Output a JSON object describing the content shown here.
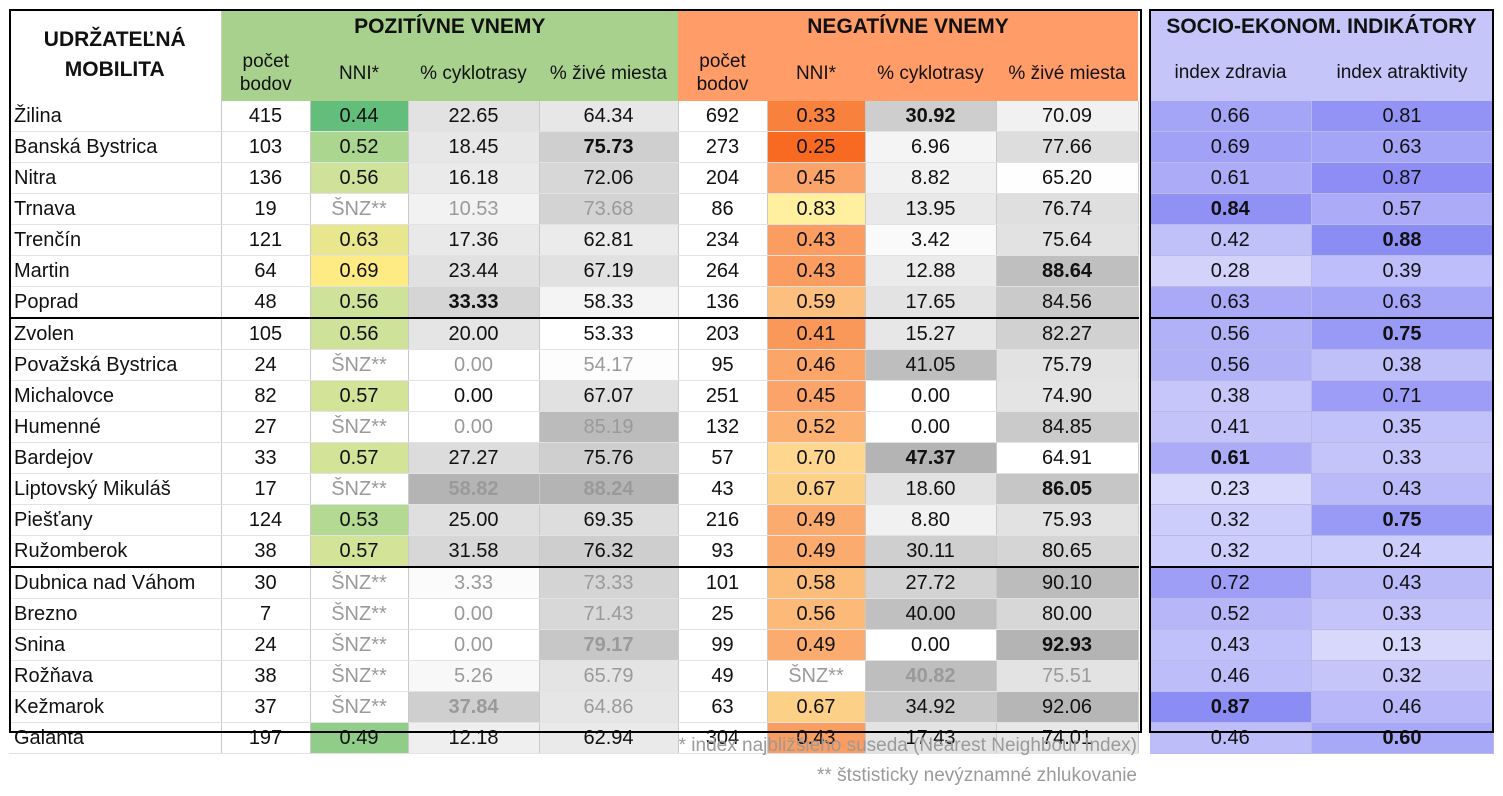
{
  "headers": {
    "mobility": "UDRŽATEĽNÁ\nMOBILITA",
    "positive": "POZITÍVNE VNEMY",
    "negative": "NEGATÍVNE VNEMY",
    "socio": "SOCIO-EKONOM. INDIKÁTORY",
    "col_points": "počet\nbodov",
    "col_nni": "NNI*",
    "col_cycle": "% cyklotrasy",
    "col_live": "% živé miesta",
    "col_health": "index zdravia",
    "col_attract": "index atraktivity"
  },
  "colors": {
    "positive_header": "#a9d18e",
    "negative_header": "#ff9c68",
    "socio_header": "#c5c5fa",
    "frame": "#000000"
  },
  "rows": [
    {
      "city": "Žilina",
      "pp": "415",
      "pn": "0.44",
      "pc": "22.65",
      "pl": "64.34",
      "np": "692",
      "nn": "0.33",
      "nc": "30.92",
      "nl": "70.09",
      "h": "0.66",
      "a": "0.81"
    },
    {
      "city": "Banská Bystrica",
      "pp": "103",
      "pn": "0.52",
      "pc": "18.45",
      "pl": "75.73",
      "np": "273",
      "nn": "0.25",
      "nc": "6.96",
      "nl": "77.66",
      "h": "0.69",
      "a": "0.63"
    },
    {
      "city": "Nitra",
      "pp": "136",
      "pn": "0.56",
      "pc": "16.18",
      "pl": "72.06",
      "np": "204",
      "nn": "0.45",
      "nc": "8.82",
      "nl": "65.20",
      "h": "0.61",
      "a": "0.87"
    },
    {
      "city": "Trnava",
      "pp": "19",
      "pn": "ŠNZ**",
      "pc": "10.53",
      "pl": "73.68",
      "np": "86",
      "nn": "0.83",
      "nc": "13.95",
      "nl": "76.74",
      "h": "0.84",
      "a": "0.57"
    },
    {
      "city": "Trenčín",
      "pp": "121",
      "pn": "0.63",
      "pc": "17.36",
      "pl": "62.81",
      "np": "234",
      "nn": "0.43",
      "nc": "3.42",
      "nl": "75.64",
      "h": "0.42",
      "a": "0.88"
    },
    {
      "city": "Martin",
      "pp": "64",
      "pn": "0.69",
      "pc": "23.44",
      "pl": "67.19",
      "np": "264",
      "nn": "0.43",
      "nc": "12.88",
      "nl": "88.64",
      "h": "0.28",
      "a": "0.39"
    },
    {
      "city": "Poprad",
      "pp": "48",
      "pn": "0.56",
      "pc": "33.33",
      "pl": "58.33",
      "np": "136",
      "nn": "0.59",
      "nc": "17.65",
      "nl": "84.56",
      "h": "0.63",
      "a": "0.63"
    },
    {
      "city": "Zvolen",
      "pp": "105",
      "pn": "0.56",
      "pc": "20.00",
      "pl": "53.33",
      "np": "203",
      "nn": "0.41",
      "nc": "15.27",
      "nl": "82.27",
      "h": "0.56",
      "a": "0.75"
    },
    {
      "city": "Považská Bystrica",
      "pp": "24",
      "pn": "ŠNZ**",
      "pc": "0.00",
      "pl": "54.17",
      "np": "95",
      "nn": "0.46",
      "nc": "41.05",
      "nl": "75.79",
      "h": "0.56",
      "a": "0.38"
    },
    {
      "city": "Michalovce",
      "pp": "82",
      "pn": "0.57",
      "pc": "0.00",
      "pl": "67.07",
      "np": "251",
      "nn": "0.45",
      "nc": "0.00",
      "nl": "74.90",
      "h": "0.38",
      "a": "0.71"
    },
    {
      "city": "Humenné",
      "pp": "27",
      "pn": "ŠNZ**",
      "pc": "0.00",
      "pl": "85.19",
      "np": "132",
      "nn": "0.52",
      "nc": "0.00",
      "nl": "84.85",
      "h": "0.41",
      "a": "0.35"
    },
    {
      "city": "Bardejov",
      "pp": "33",
      "pn": "0.57",
      "pc": "27.27",
      "pl": "75.76",
      "np": "57",
      "nn": "0.70",
      "nc": "47.37",
      "nl": "64.91",
      "h": "0.61",
      "a": "0.33"
    },
    {
      "city": "Liptovský Mikuláš",
      "pp": "17",
      "pn": "ŠNZ**",
      "pc": "58.82",
      "pl": "88.24",
      "np": "43",
      "nn": "0.67",
      "nc": "18.60",
      "nl": "86.05",
      "h": "0.23",
      "a": "0.43"
    },
    {
      "city": "Piešťany",
      "pp": "124",
      "pn": "0.53",
      "pc": "25.00",
      "pl": "69.35",
      "np": "216",
      "nn": "0.49",
      "nc": "8.80",
      "nl": "75.93",
      "h": "0.32",
      "a": "0.75"
    },
    {
      "city": "Ružomberok",
      "pp": "38",
      "pn": "0.57",
      "pc": "31.58",
      "pl": "76.32",
      "np": "93",
      "nn": "0.49",
      "nc": "30.11",
      "nl": "80.65",
      "h": "0.32",
      "a": "0.24"
    },
    {
      "city": "Dubnica nad Váhom",
      "pp": "30",
      "pn": "ŠNZ**",
      "pc": "3.33",
      "pl": "73.33",
      "np": "101",
      "nn": "0.58",
      "nc": "27.72",
      "nl": "90.10",
      "h": "0.72",
      "a": "0.43"
    },
    {
      "city": "Brezno",
      "pp": "7",
      "pn": "ŠNZ**",
      "pc": "0.00",
      "pl": "71.43",
      "np": "25",
      "nn": "0.56",
      "nc": "40.00",
      "nl": "80.00",
      "h": "0.52",
      "a": "0.33"
    },
    {
      "city": "Snina",
      "pp": "24",
      "pn": "ŠNZ**",
      "pc": "0.00",
      "pl": "79.17",
      "np": "99",
      "nn": "0.49",
      "nc": "0.00",
      "nl": "92.93",
      "h": "0.43",
      "a": "0.13"
    },
    {
      "city": "Rožňava",
      "pp": "38",
      "pn": "ŠNZ**",
      "pc": "5.26",
      "pl": "65.79",
      "np": "49",
      "nn": "ŠNZ**",
      "nc": "40.82",
      "nl": "75.51",
      "h": "0.46",
      "a": "0.32"
    },
    {
      "city": "Kežmarok",
      "pp": "37",
      "pn": "ŠNZ**",
      "pc": "37.84",
      "pl": "64.86",
      "np": "63",
      "nn": "0.67",
      "nc": "34.92",
      "nl": "92.06",
      "h": "0.87",
      "a": "0.46"
    },
    {
      "city": "Galanta",
      "pp": "197",
      "pn": "0.49",
      "pc": "12.18",
      "pl": "62.94",
      "np": "304",
      "nn": "0.43",
      "nc": "17.43",
      "nl": "74.01",
      "h": "0.46",
      "a": "0.60"
    }
  ],
  "bold_cells": {
    "pc": [
      "Poprad",
      "Liptovský Mikuláš",
      "Kežmarok"
    ],
    "pl": [
      "Banská Bystrica",
      "Liptovský Mikuláš",
      "Snina"
    ],
    "nc": [
      "Žilina",
      "Bardejov",
      "Rožňava"
    ],
    "nl": [
      "Martin",
      "Liptovský Mikuláš",
      "Snina"
    ],
    "h": [
      "Trnava",
      "Bardejov",
      "Kežmarok"
    ],
    "a": [
      "Trenčín",
      "Zvolen",
      "Piešťany",
      "Galanta"
    ]
  },
  "group_starts": [
    "Zvolen",
    "Dubnica nad Váhom"
  ],
  "footnotes": {
    "nni": "* index najbližšieho suseda (Nearest Neighbour Index)",
    "snz": "** štstisticky nevýznamné zhlukovanie"
  }
}
